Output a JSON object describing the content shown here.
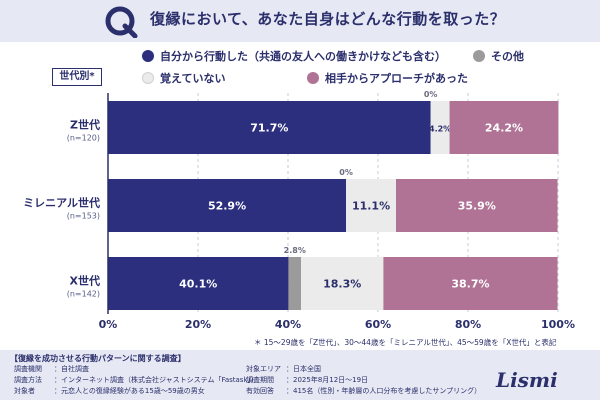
{
  "header": {
    "q_letter": "Q",
    "title": "復縁において、あなた自身はどんな行動を取った？"
  },
  "legend": [
    {
      "label": "自分から行動した（共通の友人への働きかけなども含む）",
      "color": "#2b2f7e"
    },
    {
      "label": "その他",
      "color": "#9b9b9b"
    },
    {
      "label": "覚えていない",
      "color": "#ebebeb"
    },
    {
      "label": "相手からアプローチがあった",
      "color": "#b07395"
    }
  ],
  "group_badge": "世代別*",
  "chart_data": {
    "type": "bar",
    "orientation": "horizontal",
    "stacked": true,
    "categories": [
      "Z世代",
      "ミレニアル世代",
      "X世代"
    ],
    "category_sublabels": [
      "(n=120)",
      "(n=153)",
      "(n=142)"
    ],
    "series": [
      {
        "name": "自分から行動した（共通の友人への働きかけなども含む）",
        "color": "#2b2f7e",
        "label_color": "#ffffff",
        "values": [
          71.7,
          52.9,
          40.1
        ],
        "labels": [
          "71.7%",
          "52.9%",
          "40.1%"
        ]
      },
      {
        "name": "その他",
        "color": "#9b9b9b",
        "label_color": "#2b2f6b",
        "values": [
          0,
          0,
          2.8
        ],
        "labels": [
          "0%",
          "0%",
          "2.8%"
        ]
      },
      {
        "name": "覚えていない",
        "color": "#ebebeb",
        "label_color": "#2b2f6b",
        "values": [
          4.2,
          11.1,
          18.3
        ],
        "labels": [
          "4.2%",
          "11.1%",
          "18.3%"
        ]
      },
      {
        "name": "相手からアプローチがあった",
        "color": "#b07395",
        "label_color": "#ffffff",
        "values": [
          24.2,
          35.9,
          38.7
        ],
        "labels": [
          "24.2%",
          "35.9%",
          "38.7%"
        ]
      }
    ],
    "xlim": [
      0,
      100
    ],
    "xticks": [
      "0%",
      "20%",
      "40%",
      "60%",
      "80%",
      "100%"
    ],
    "tick_values": [
      0,
      20,
      40,
      60,
      80,
      100
    ]
  },
  "note": "＊ 15〜29歳を「Z世代」、30〜44歳を「ミレニアル世代」、45〜59歳を「X世代」と表記",
  "footer": {
    "title": "【復縁を成功させる行動パターンに関する調査】",
    "rows_left": [
      {
        "key": "調査機関",
        "value": "：自社調査"
      },
      {
        "key": "調査方法",
        "value": "：インターネット調査（株式会社ジャストシステム「Fastask」）"
      },
      {
        "key": "対象者",
        "value": "：元恋人との復縁経験がある15歳〜59歳の男女"
      }
    ],
    "rows_right": [
      {
        "key": "対象エリア",
        "value": "：日本全国"
      },
      {
        "key": "調査期間",
        "value": "：2025年8月12日〜19日"
      },
      {
        "key": "有効回答",
        "value": "：415名（性別・年齢層の人口分布を考慮したサンプリング）"
      }
    ],
    "logo": "Lismi"
  }
}
